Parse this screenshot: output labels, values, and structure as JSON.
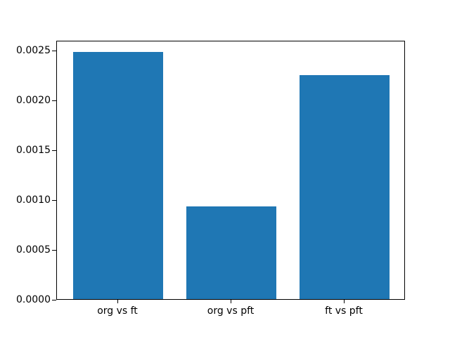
{
  "chart_data": {
    "type": "bar",
    "categories": [
      "org vs ft",
      "org vs pft",
      "ft vs pft"
    ],
    "values": [
      0.00248,
      0.00093,
      0.00225
    ],
    "ytick_values": [
      0.0,
      0.0005,
      0.001,
      0.0015,
      0.002,
      0.0025
    ],
    "ytick_labels": [
      "0.0000",
      "0.0005",
      "0.0010",
      "0.0015",
      "0.0020",
      "0.0025"
    ],
    "title": "",
    "xlabel": "",
    "ylabel": "",
    "ylim": [
      0,
      0.0026
    ],
    "xlim": [
      -0.54,
      2.54
    ],
    "bar_width_fraction": 0.8,
    "bar_color": "#1f77b4",
    "background_color": "#ffffff",
    "spine_color": "#000000",
    "grid": false,
    "legend": null
  }
}
